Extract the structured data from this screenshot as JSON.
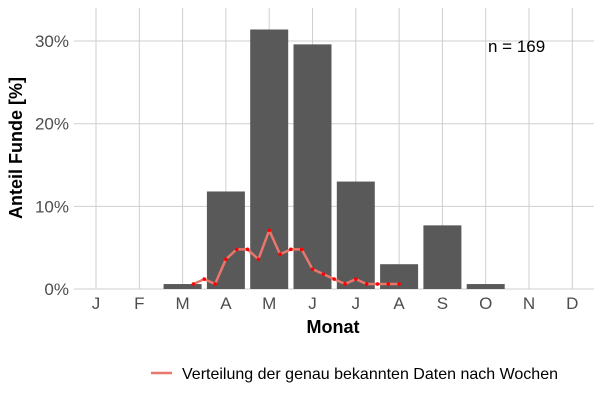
{
  "chart_data": {
    "type": "bar",
    "xlabel": "Monat",
    "ylabel": "Anteil Funde [%]",
    "categories": [
      "J",
      "F",
      "M",
      "A",
      "M",
      "J",
      "J",
      "A",
      "S",
      "O",
      "N",
      "D"
    ],
    "values": [
      0,
      0,
      0.6,
      11.8,
      31.4,
      29.6,
      13.0,
      3.0,
      7.7,
      0.6,
      0,
      0
    ],
    "ylim": [
      0,
      34
    ],
    "yticks": [
      {
        "value": 0,
        "label": "0%"
      },
      {
        "value": 10,
        "label": "10%"
      },
      {
        "value": 20,
        "label": "20%"
      },
      {
        "value": 30,
        "label": "30%"
      }
    ],
    "bar_color": "#595959",
    "grid": true,
    "annotation": "n = 169",
    "line_series": {
      "name": "Verteilung der genau bekannten Daten nach Wochen",
      "color": "#e8766c",
      "marker_color": "#ff0000",
      "x_month_pos": [
        3.25,
        3.5,
        3.75,
        4.0,
        4.25,
        4.5,
        4.75,
        5.0,
        5.25,
        5.5,
        5.75,
        6.0,
        6.25,
        6.5,
        6.75,
        7.0,
        7.25,
        7.5,
        7.75,
        8.0,
        8.25,
        8.5,
        8.75,
        9.0,
        9.25,
        9.5,
        9.75,
        10.0
      ],
      "values": [
        0.6,
        1.2,
        0.6,
        3.6,
        4.8,
        4.8,
        3.6,
        7.1,
        4.2,
        4.8,
        4.8,
        2.4,
        1.8,
        1.2,
        0.6,
        1.2,
        0.6,
        0.6,
        0.6,
        0.6,
        null,
        null,
        null,
        null,
        null,
        null,
        null,
        null
      ]
    },
    "legend_position": "bottom-right"
  }
}
